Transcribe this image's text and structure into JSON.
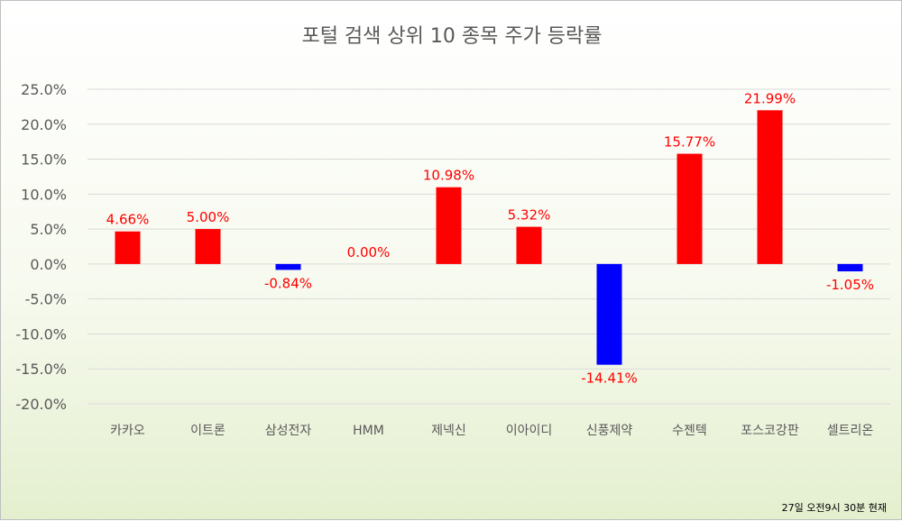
{
  "chart_data": {
    "type": "bar",
    "title": "포털 검색 상위 10 종목 주가 등락률",
    "categories": [
      "카카오",
      "이트론",
      "삼성전자",
      "HMM",
      "제넥신",
      "이아이디",
      "신풍제약",
      "수젠텍",
      "포스코강판",
      "셀트리온"
    ],
    "values": [
      4.66,
      5.0,
      -0.84,
      0.0,
      10.98,
      5.32,
      -14.41,
      15.77,
      21.99,
      -1.05
    ],
    "data_labels": [
      "4.66%",
      "5.00%",
      "-0.84%",
      "0.00%",
      "10.98%",
      "5.32%",
      "-14.41%",
      "15.77%",
      "21.99%",
      "-1.05%"
    ],
    "y_ticks": [
      "25.0%",
      "20.0%",
      "15.0%",
      "10.0%",
      "5.0%",
      "0.0%",
      "-5.0%",
      "-10.0%",
      "-15.0%",
      "-20.0%"
    ],
    "ylim": [
      -20,
      25
    ],
    "grid": true,
    "colors": {
      "positive": "#ff0000",
      "negative": "#0000ff",
      "label": "#ff0000",
      "grid": "#d9d9d9",
      "text": "#595959"
    },
    "footnote": "27일 오전9시 30분 현재"
  }
}
